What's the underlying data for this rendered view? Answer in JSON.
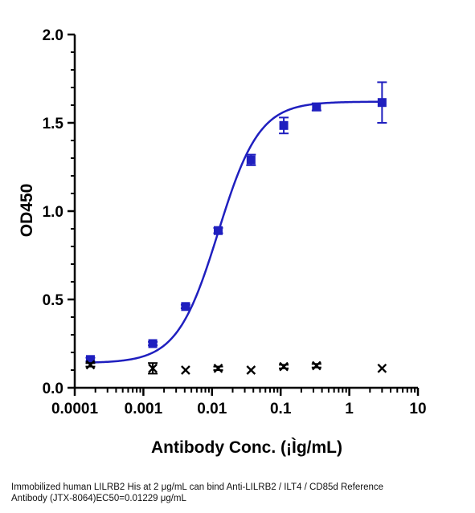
{
  "chart_data": {
    "type": "scatter",
    "xlabel": "Antibody Conc. (¡Ìg/mL)",
    "ylabel": "OD450",
    "x_scale": "log",
    "xlim": [
      0.0001,
      10
    ],
    "ylim": [
      0,
      2.0
    ],
    "x_ticks": [
      0.0001,
      0.001,
      0.01,
      0.1,
      1,
      10
    ],
    "x_tick_labels": [
      "0.0001",
      "0.001",
      "0.01",
      "0.1",
      "1",
      "10"
    ],
    "y_ticks": [
      0,
      0.5,
      1.0,
      1.5,
      2.0
    ],
    "y_tick_labels": [
      "0.0",
      "0.5",
      "1.0",
      "1.5",
      "2.0"
    ],
    "grid": false,
    "colors": {
      "series": "#1f1fbf",
      "control": "#000000"
    },
    "series": [
      {
        "marker": "square",
        "x": [
          0.000169,
          0.00137,
          0.00412,
          0.0123,
          0.037,
          0.111,
          0.333,
          3.0
        ],
        "y": [
          0.16,
          0.25,
          0.46,
          0.89,
          1.29,
          1.485,
          1.59,
          1.615
        ],
        "error": [
          0.01,
          0.01,
          0.01,
          0.015,
          0.03,
          0.045,
          0.02,
          0.115
        ]
      },
      {
        "marker": "x",
        "x": [
          0.000169,
          0.00137,
          0.00412,
          0.0123,
          0.037,
          0.111,
          0.333,
          3.0
        ],
        "y": [
          0.13,
          0.11,
          0.1,
          0.11,
          0.1,
          0.12,
          0.125,
          0.11
        ],
        "error": [
          0.01,
          0.03,
          0.005,
          0.01,
          0.005,
          0.01,
          0.01,
          0.005
        ]
      }
    ],
    "fit": {
      "bottom": 0.14,
      "top": 1.62,
      "ec50": 0.01229,
      "hill": 1.45
    }
  },
  "caption": {
    "line1": "Immobilized human LILRB2 His at 2  μg/mL can bind  Anti-LILRB2 / ILT4 / CD85d Reference",
    "line2": "Antibody (JTX-8064)\u0002EC50=0.01229 μg/mL"
  }
}
